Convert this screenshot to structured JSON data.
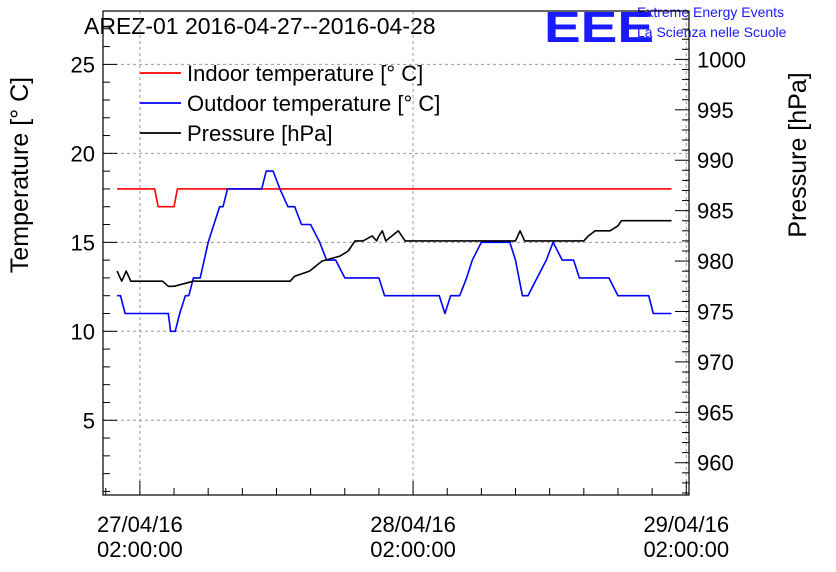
{
  "logo": {
    "mark": "EEE",
    "line1": "Extreme Energy Events",
    "line2": "La Scienza nelle Scuole",
    "color": "#1a1aff"
  },
  "chart_data": {
    "type": "line",
    "title": "AREZ-01 2016-04-27--2016-04-28",
    "ylabel": "Temperature [° C]",
    "y2label": "Pressure [hPa]",
    "x_unit": "hours from 27/04/16 02:00:00",
    "xlim": [
      -3.24,
      48.24
    ],
    "ylim": [
      0.8,
      28
    ],
    "y2lim": [
      956.8,
      1004.8
    ],
    "x_ticks": [
      {
        "x": 0,
        "line1": "27/04/16",
        "line2": "02:00:00"
      },
      {
        "x": 24,
        "line1": "28/04/16",
        "line2": "02:00:00"
      },
      {
        "x": 48,
        "line1": "29/04/16",
        "line2": "02:00:00"
      }
    ],
    "y_ticks": [
      5,
      10,
      15,
      20,
      25
    ],
    "y2_ticks": [
      960,
      965,
      970,
      975,
      980,
      985,
      990,
      995,
      1000
    ],
    "grid": true,
    "legend_position": "top-left",
    "series": [
      {
        "name": "Indoor temperature [° C]",
        "axis": "left",
        "color": "#ff0000",
        "x": [
          -2,
          1.3,
          1.6,
          3,
          3.3,
          46.7
        ],
        "y": [
          18,
          18,
          17,
          17,
          18,
          18
        ]
      },
      {
        "name": "Outdoor temperature [° C]",
        "axis": "left",
        "color": "#0000ff",
        "x": [
          -2,
          -1.7,
          -1.3,
          2.5,
          2.7,
          3.1,
          3.5,
          4,
          4.3,
          4.7,
          5.3,
          6,
          7,
          7.3,
          7.7,
          8.1,
          8.7,
          9.2,
          10,
          10.7,
          11.1,
          11.7,
          12.3,
          13,
          13.6,
          14.2,
          15,
          15.8,
          16.4,
          17.2,
          18,
          21,
          21.5,
          21.9,
          25.8,
          26.3,
          26.8,
          27.3,
          28.1,
          28.7,
          29.2,
          30,
          31.2,
          32.5,
          33,
          33.6,
          34.1,
          34.9,
          35.7,
          36.3,
          37.1,
          37.6,
          38.1,
          38.6,
          39.1,
          39.8,
          41.2,
          42,
          42.3,
          44.7,
          45.1,
          45.9,
          46.7
        ],
        "y": [
          12,
          12,
          11,
          11,
          10,
          10,
          11,
          12,
          12,
          13,
          13,
          15,
          17,
          17,
          18,
          18,
          18,
          18,
          18,
          18,
          19,
          19,
          18,
          17,
          17,
          16,
          16,
          15,
          14,
          14,
          13,
          13,
          12,
          12,
          12,
          12,
          11,
          12,
          12,
          13,
          14,
          15,
          15,
          15,
          14,
          12,
          12,
          13,
          14,
          15,
          14,
          14,
          14,
          13,
          13,
          13,
          13,
          12,
          12,
          12,
          11,
          11,
          11
        ]
      },
      {
        "name": "Pressure [hPa]",
        "axis": "right",
        "color": "#000000",
        "x": [
          -2,
          -1.6,
          -1.2,
          -0.8,
          -0.4,
          0,
          2,
          2.5,
          3,
          4.7,
          13.2,
          13.6,
          14.9,
          16,
          17.6,
          18.3,
          18.9,
          19.6,
          20.4,
          20.8,
          21,
          21.3,
          21.6,
          22.7,
          23.3,
          33,
          33.4,
          33.8,
          34.3,
          39,
          39.4,
          40,
          41.3,
          42,
          42.3,
          46.7
        ],
        "y": [
          979,
          978,
          979,
          978,
          978,
          978,
          978,
          977.5,
          977.5,
          978,
          978,
          978.5,
          979,
          980,
          980.5,
          981,
          982,
          982,
          982.5,
          982,
          982.5,
          983,
          982,
          983,
          982,
          982,
          983,
          982,
          982,
          982,
          982.5,
          983,
          983,
          983.5,
          984,
          984
        ]
      }
    ]
  }
}
